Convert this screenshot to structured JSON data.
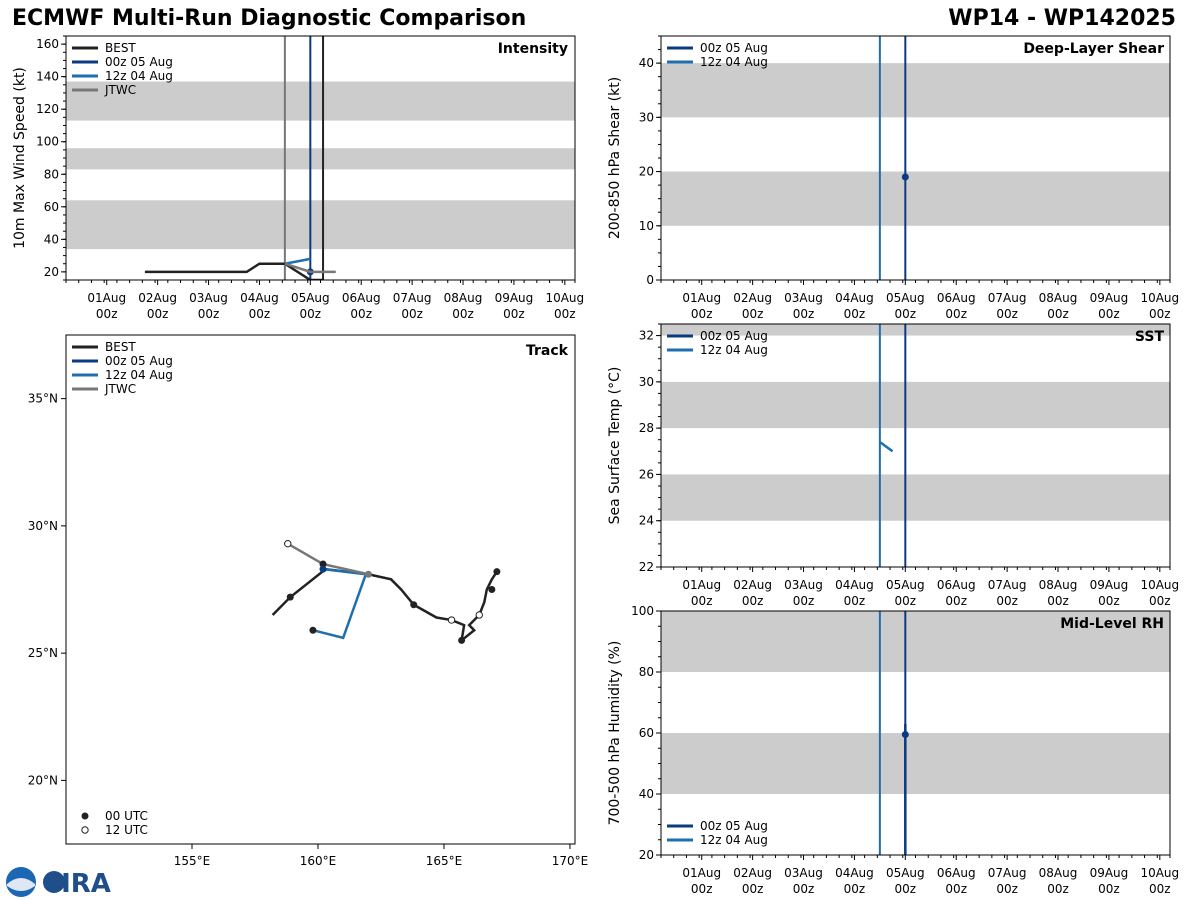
{
  "header": {
    "title": "ECMWF Multi-Run Diagnostic Comparison",
    "storm_id": "WP14 - WP142025"
  },
  "colors": {
    "best": "#222222",
    "run1": "#0a3a82",
    "run2": "#1f6fae",
    "jtwc": "#777777",
    "band": "#cccccc"
  },
  "logo": {
    "text": "CIRA"
  },
  "time_axis": {
    "ticks": [
      {
        "day": "01Aug",
        "hour": "00z"
      },
      {
        "day": "02Aug",
        "hour": "00z"
      },
      {
        "day": "03Aug",
        "hour": "00z"
      },
      {
        "day": "04Aug",
        "hour": "00z"
      },
      {
        "day": "05Aug",
        "hour": "00z"
      },
      {
        "day": "06Aug",
        "hour": "00z"
      },
      {
        "day": "07Aug",
        "hour": "00z"
      },
      {
        "day": "08Aug",
        "hour": "00z"
      },
      {
        "day": "09Aug",
        "hour": "00z"
      },
      {
        "day": "10Aug",
        "hour": "00z"
      }
    ],
    "range_days": [
      0.2,
      10.2
    ]
  },
  "chart_data": [
    {
      "id": "intensity",
      "type": "line",
      "title": "Intensity",
      "ylabel": "10m Max Wind Speed (kt)",
      "ylim": [
        15,
        165
      ],
      "yticks": [
        20,
        40,
        60,
        80,
        100,
        120,
        140,
        160
      ],
      "bands": [
        [
          34,
          64
        ],
        [
          83,
          96
        ],
        [
          113,
          137
        ]
      ],
      "legend": [
        "BEST",
        "00z 05 Aug",
        "12z 04 Aug",
        "JTWC"
      ],
      "vlines": [
        {
          "series": "jtwc",
          "x": 4.5
        },
        {
          "series": "run1",
          "x": 5.0
        },
        {
          "series": "best",
          "x": 5.25
        }
      ],
      "series": [
        {
          "name": "BEST",
          "key": "best",
          "x": [
            1.75,
            3.75,
            4.0,
            4.5,
            5.0,
            5.25
          ],
          "y": [
            20,
            20,
            25,
            25,
            15,
            15
          ]
        },
        {
          "name": "00z 05 Aug",
          "key": "run1",
          "x": [
            5.0
          ],
          "y": [
            20
          ]
        },
        {
          "name": "12z 04 Aug",
          "key": "run2",
          "x": [
            4.5,
            5.0
          ],
          "y": [
            25,
            28
          ]
        },
        {
          "name": "JTWC",
          "key": "jtwc",
          "x": [
            4.5,
            5.0,
            5.5
          ],
          "y": [
            25,
            20,
            20
          ]
        }
      ]
    },
    {
      "id": "shear",
      "type": "line",
      "title": "Deep-Layer Shear",
      "ylabel": "200-850 hPa Shear (kt)",
      "ylim": [
        0,
        45
      ],
      "yticks": [
        0,
        10,
        20,
        30,
        40
      ],
      "bands": [
        [
          10,
          20
        ],
        [
          30,
          40
        ]
      ],
      "legend": [
        "00z 05 Aug",
        "12z 04 Aug"
      ],
      "vlines": [
        {
          "series": "run2",
          "x": 4.5
        },
        {
          "series": "run1",
          "x": 5.0
        }
      ],
      "series": [
        {
          "name": "00z 05 Aug",
          "key": "run1",
          "x": [
            5.0
          ],
          "y": [
            19
          ]
        }
      ]
    },
    {
      "id": "sst",
      "type": "line",
      "title": "SST",
      "ylabel": "Sea Surface Temp (°C)",
      "ylim": [
        22,
        32.5
      ],
      "yticks": [
        22,
        24,
        26,
        28,
        30,
        32
      ],
      "bands": [
        [
          24,
          26
        ],
        [
          28,
          30
        ],
        [
          32,
          33
        ]
      ],
      "legend": [
        "00z 05 Aug",
        "12z 04 Aug"
      ],
      "vlines": [
        {
          "series": "run2",
          "x": 4.5
        },
        {
          "series": "run1",
          "x": 5.0
        }
      ],
      "series": [
        {
          "name": "12z 04 Aug",
          "key": "run2",
          "x": [
            4.5,
            4.75
          ],
          "y": [
            27.4,
            27.0
          ]
        }
      ]
    },
    {
      "id": "rh",
      "type": "line",
      "title": "Mid-Level RH",
      "ylabel": "700-500 hPa Humidity (%)",
      "ylim": [
        20,
        100
      ],
      "yticks": [
        20,
        40,
        60,
        80,
        100
      ],
      "bands": [
        [
          40,
          60
        ],
        [
          80,
          100
        ]
      ],
      "legend": [
        "00z 05 Aug",
        "12z 04 Aug"
      ],
      "vlines": [
        {
          "series": "run2",
          "x": 4.5
        },
        {
          "series": "run1",
          "x": 5.0
        }
      ],
      "series": [
        {
          "name": "00z 05 Aug",
          "key": "run1",
          "x": [
            5.0,
            5.0
          ],
          "y": [
            20,
            63
          ]
        },
        {
          "name": "00z 05 Aug marker",
          "key": "run1",
          "x": [
            5.0
          ],
          "y": [
            59.5
          ]
        }
      ]
    },
    {
      "id": "track",
      "type": "scatter",
      "title": "Track",
      "xlim": [
        150,
        170.2
      ],
      "ylim": [
        17.5,
        37.5
      ],
      "xticks": [
        {
          "v": 155,
          "label": "155°E"
        },
        {
          "v": 160,
          "label": "160°E"
        },
        {
          "v": 165,
          "label": "165°E"
        },
        {
          "v": 170,
          "label": "170°E"
        }
      ],
      "yticks": [
        {
          "v": 20,
          "label": "20°N"
        },
        {
          "v": 25,
          "label": "25°N"
        },
        {
          "v": 30,
          "label": "30°N"
        },
        {
          "v": 35,
          "label": "35°N"
        }
      ],
      "legend": [
        "BEST",
        "00z 05 Aug",
        "12z 04 Aug",
        "JTWC"
      ],
      "legend2": [
        "00 UTC",
        "12 UTC"
      ],
      "series": [
        {
          "name": "BEST",
          "key": "best",
          "lon": [
            167.1,
            166.9,
            166.7,
            166.6,
            166.4,
            166.0,
            166.2,
            165.7,
            165.8,
            165.3,
            164.7,
            163.8,
            163.3,
            162.9,
            162.0,
            160.3,
            158.9,
            158.2
          ],
          "lat": [
            28.2,
            27.9,
            27.5,
            27.0,
            26.5,
            26.1,
            25.9,
            25.5,
            26.1,
            26.3,
            26.4,
            26.9,
            27.5,
            27.9,
            28.1,
            28.3,
            27.2,
            26.5
          ]
        },
        {
          "name": "12z 04 Aug",
          "key": "run2",
          "lon": [
            159.8,
            161.0,
            161.9,
            160.2
          ],
          "lat": [
            25.9,
            25.6,
            28.1,
            28.3
          ]
        },
        {
          "name": "JTWC",
          "key": "jtwc",
          "lon": [
            162.0,
            160.2,
            158.8
          ],
          "lat": [
            28.1,
            28.5,
            29.3
          ]
        }
      ],
      "markers_00utc": [
        {
          "lon": 167.1,
          "lat": 28.2
        },
        {
          "lon": 166.9,
          "lat": 27.5
        },
        {
          "lon": 165.7,
          "lat": 25.5
        },
        {
          "lon": 163.8,
          "lat": 26.9
        },
        {
          "lon": 160.2,
          "lat": 28.5
        },
        {
          "lon": 158.9,
          "lat": 27.2
        },
        {
          "lon": 159.8,
          "lat": 25.9
        }
      ],
      "markers_00utc_gray": [
        {
          "lon": 162.0,
          "lat": 28.1
        }
      ],
      "markers_00utc_run1": [
        {
          "lon": 160.2,
          "lat": 28.3
        }
      ],
      "markers_12utc": [
        {
          "lon": 166.4,
          "lat": 26.5
        },
        {
          "lon": 165.3,
          "lat": 26.3
        },
        {
          "lon": 158.8,
          "lat": 29.3
        }
      ]
    }
  ]
}
